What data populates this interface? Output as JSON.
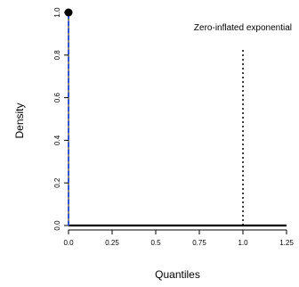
{
  "chart_data": {
    "type": "line",
    "title": "",
    "xlabel": "Quantiles",
    "ylabel": "Density",
    "xlim": [
      0,
      1.25
    ],
    "ylim": [
      0,
      1.0
    ],
    "x_ticks": [
      0,
      0.25,
      0.5,
      0.75,
      1.0,
      1.25
    ],
    "x_tick_labels": [
      "0.0",
      "0.25",
      "0.5",
      "0.75",
      "1.0",
      "1.25"
    ],
    "y_ticks": [
      0,
      0.2,
      0.4,
      0.6,
      0.8,
      1.0
    ],
    "y_tick_labels": [
      "0.0",
      "0.2",
      "0.4",
      "0.6",
      "0.8",
      "1.0"
    ],
    "grid": false,
    "legend_text": "Zero-inflated exponential",
    "legend_position": "top-right",
    "point_mass": {
      "x": 0,
      "y": 1.0
    },
    "series": [
      {
        "style": "solid",
        "color": "#000000",
        "x": [
          0,
          1.25
        ],
        "y": [
          0,
          0
        ]
      },
      {
        "style": "dashed",
        "color": "#1f3fd6",
        "x": [
          0,
          0
        ],
        "y": [
          0,
          1.0
        ]
      }
    ],
    "reference_line": {
      "x": 1.0,
      "y_range": [
        0,
        0.83
      ],
      "style": "dotted",
      "color": "#000000"
    },
    "colors": {
      "axis": "#000000",
      "dashed": "#1f3fd6",
      "point": "#000000"
    }
  }
}
